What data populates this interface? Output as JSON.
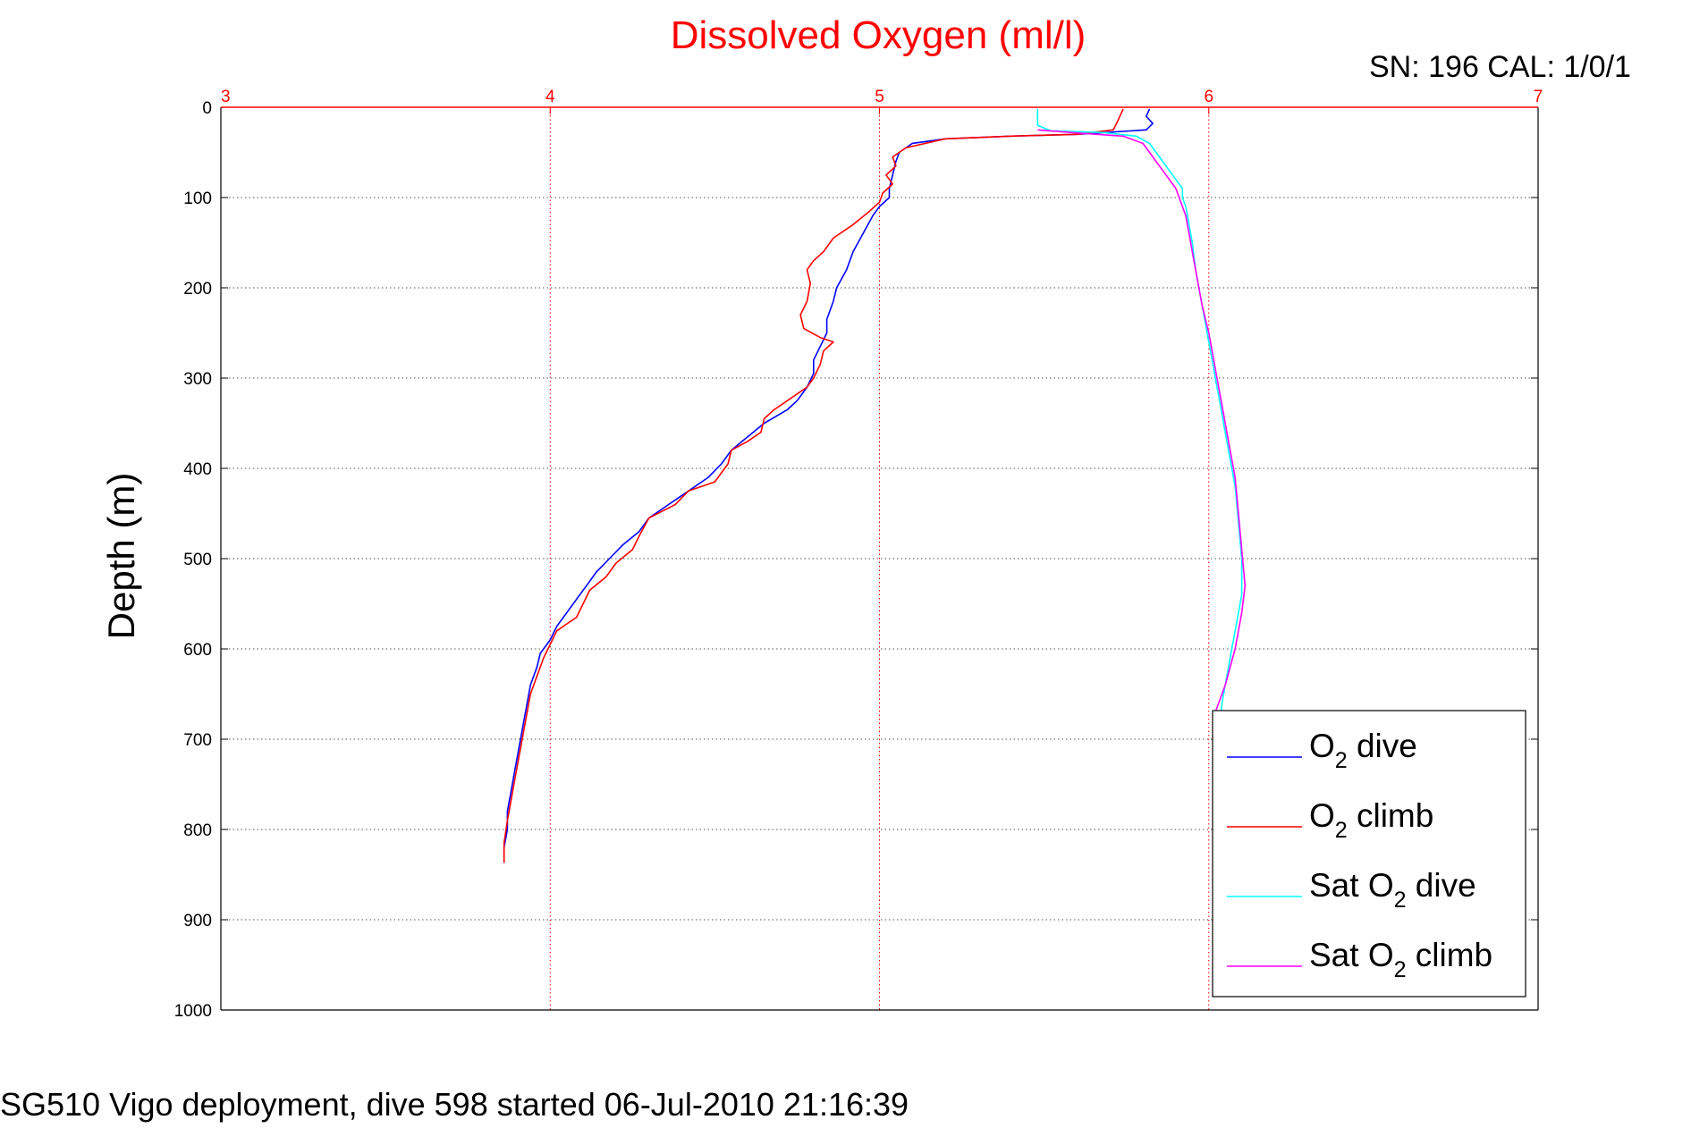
{
  "chart_data": {
    "type": "line",
    "title": "Dissolved Oxygen (ml/l)",
    "ylabel": "Depth (m)",
    "xlabel": "",
    "xlim": [
      3,
      7
    ],
    "ylim": [
      0,
      1000
    ],
    "y_reversed": true,
    "x_axis_position": "top",
    "x_ticks": [
      3,
      4,
      5,
      6,
      7
    ],
    "y_ticks": [
      0,
      100,
      200,
      300,
      400,
      500,
      600,
      700,
      800,
      900,
      1000
    ],
    "grid": true,
    "legend_position": "bottom-right",
    "annotation": "SN: 196  CAL: 1/0/1",
    "caption": "SG510 Vigo deployment, dive 598 started 06-Jul-2010 21:16:39",
    "series": [
      {
        "name": "O2 dive",
        "legend": {
          "pre": "O",
          "sub": "2",
          "post": " dive"
        },
        "color": "#0000ff",
        "points": [
          [
            5.82,
            2
          ],
          [
            5.81,
            10
          ],
          [
            5.83,
            18
          ],
          [
            5.81,
            25
          ],
          [
            5.6,
            30
          ],
          [
            5.4,
            32
          ],
          [
            5.2,
            35
          ],
          [
            5.1,
            40
          ],
          [
            5.06,
            50
          ],
          [
            5.05,
            60
          ],
          [
            5.04,
            75
          ],
          [
            5.03,
            90
          ],
          [
            5.03,
            100
          ],
          [
            5.0,
            110
          ],
          [
            4.98,
            120
          ],
          [
            4.95,
            140
          ],
          [
            4.92,
            160
          ],
          [
            4.9,
            180
          ],
          [
            4.87,
            200
          ],
          [
            4.86,
            215
          ],
          [
            4.84,
            235
          ],
          [
            4.84,
            250
          ],
          [
            4.82,
            265
          ],
          [
            4.8,
            280
          ],
          [
            4.8,
            295
          ],
          [
            4.78,
            310
          ],
          [
            4.75,
            325
          ],
          [
            4.72,
            335
          ],
          [
            4.65,
            350
          ],
          [
            4.6,
            365
          ],
          [
            4.55,
            380
          ],
          [
            4.52,
            395
          ],
          [
            4.48,
            410
          ],
          [
            4.42,
            425
          ],
          [
            4.36,
            440
          ],
          [
            4.3,
            455
          ],
          [
            4.27,
            470
          ],
          [
            4.22,
            485
          ],
          [
            4.18,
            500
          ],
          [
            4.14,
            515
          ],
          [
            4.11,
            530
          ],
          [
            4.08,
            545
          ],
          [
            4.05,
            560
          ],
          [
            4.02,
            575
          ],
          [
            4.0,
            590
          ],
          [
            3.97,
            605
          ],
          [
            3.96,
            620
          ],
          [
            3.94,
            640
          ],
          [
            3.93,
            660
          ],
          [
            3.92,
            680
          ],
          [
            3.91,
            700
          ],
          [
            3.9,
            720
          ],
          [
            3.89,
            740
          ],
          [
            3.88,
            760
          ],
          [
            3.87,
            780
          ],
          [
            3.87,
            800
          ],
          [
            3.86,
            820
          ],
          [
            3.86,
            837
          ]
        ]
      },
      {
        "name": "O2 climb",
        "legend": {
          "pre": "O",
          "sub": "2",
          "post": " climb"
        },
        "color": "#ff0000",
        "points": [
          [
            5.74,
            2
          ],
          [
            5.73,
            10
          ],
          [
            5.72,
            18
          ],
          [
            5.71,
            25
          ],
          [
            5.6,
            30
          ],
          [
            5.4,
            32
          ],
          [
            5.2,
            35
          ],
          [
            5.08,
            45
          ],
          [
            5.04,
            55
          ],
          [
            5.05,
            65
          ],
          [
            5.02,
            75
          ],
          [
            5.04,
            85
          ],
          [
            5.01,
            95
          ],
          [
            5.0,
            105
          ],
          [
            4.97,
            115
          ],
          [
            4.92,
            130
          ],
          [
            4.86,
            145
          ],
          [
            4.83,
            160
          ],
          [
            4.8,
            170
          ],
          [
            4.78,
            180
          ],
          [
            4.79,
            195
          ],
          [
            4.78,
            215
          ],
          [
            4.76,
            230
          ],
          [
            4.77,
            245
          ],
          [
            4.82,
            255
          ],
          [
            4.86,
            260
          ],
          [
            4.83,
            270
          ],
          [
            4.82,
            285
          ],
          [
            4.8,
            300
          ],
          [
            4.78,
            310
          ],
          [
            4.72,
            325
          ],
          [
            4.68,
            335
          ],
          [
            4.65,
            345
          ],
          [
            4.64,
            360
          ],
          [
            4.6,
            370
          ],
          [
            4.55,
            380
          ],
          [
            4.54,
            395
          ],
          [
            4.52,
            405
          ],
          [
            4.5,
            415
          ],
          [
            4.42,
            425
          ],
          [
            4.38,
            440
          ],
          [
            4.3,
            455
          ],
          [
            4.27,
            475
          ],
          [
            4.25,
            490
          ],
          [
            4.2,
            505
          ],
          [
            4.17,
            520
          ],
          [
            4.12,
            535
          ],
          [
            4.1,
            550
          ],
          [
            4.08,
            565
          ],
          [
            4.02,
            580
          ],
          [
            4.0,
            595
          ],
          [
            3.98,
            610
          ],
          [
            3.96,
            630
          ],
          [
            3.94,
            650
          ],
          [
            3.93,
            670
          ],
          [
            3.92,
            690
          ],
          [
            3.91,
            710
          ],
          [
            3.9,
            730
          ],
          [
            3.89,
            750
          ],
          [
            3.88,
            770
          ],
          [
            3.87,
            790
          ],
          [
            3.86,
            815
          ],
          [
            3.86,
            837
          ]
        ]
      },
      {
        "name": "Sat O2 dive",
        "legend": {
          "pre": "Sat O",
          "sub": "2",
          "post": " dive"
        },
        "color": "#00ffff",
        "points": [
          [
            5.48,
            2
          ],
          [
            5.48,
            10
          ],
          [
            5.48,
            20
          ],
          [
            5.52,
            26
          ],
          [
            5.68,
            28
          ],
          [
            5.78,
            32
          ],
          [
            5.82,
            40
          ],
          [
            5.84,
            50
          ],
          [
            5.86,
            60
          ],
          [
            5.88,
            70
          ],
          [
            5.9,
            80
          ],
          [
            5.92,
            90
          ],
          [
            5.92,
            100
          ],
          [
            5.93,
            110
          ],
          [
            5.94,
            130
          ],
          [
            5.95,
            150
          ],
          [
            5.96,
            180
          ],
          [
            5.97,
            200
          ],
          [
            5.98,
            220
          ],
          [
            5.99,
            240
          ],
          [
            6.0,
            260
          ],
          [
            6.02,
            300
          ],
          [
            6.04,
            340
          ],
          [
            6.06,
            380
          ],
          [
            6.08,
            420
          ],
          [
            6.09,
            460
          ],
          [
            6.1,
            500
          ],
          [
            6.1,
            540
          ],
          [
            6.08,
            580
          ],
          [
            6.06,
            620
          ],
          [
            6.04,
            660
          ],
          [
            6.03,
            700
          ],
          [
            6.02,
            720
          ]
        ]
      },
      {
        "name": "Sat O2 climb",
        "legend": {
          "pre": "Sat O",
          "sub": "2",
          "post": " climb"
        },
        "color": "#ff00ff",
        "points": [
          [
            5.48,
            25
          ],
          [
            5.62,
            29
          ],
          [
            5.74,
            32
          ],
          [
            5.8,
            40
          ],
          [
            5.82,
            50
          ],
          [
            5.84,
            60
          ],
          [
            5.86,
            70
          ],
          [
            5.88,
            80
          ],
          [
            5.9,
            90
          ],
          [
            5.91,
            100
          ],
          [
            5.93,
            120
          ],
          [
            5.94,
            140
          ],
          [
            5.95,
            160
          ],
          [
            5.96,
            180
          ],
          [
            5.97,
            200
          ],
          [
            5.98,
            220
          ],
          [
            6.0,
            250
          ],
          [
            6.02,
            290
          ],
          [
            6.04,
            330
          ],
          [
            6.06,
            370
          ],
          [
            6.08,
            410
          ],
          [
            6.09,
            450
          ],
          [
            6.1,
            490
          ],
          [
            6.11,
            530
          ],
          [
            6.1,
            560
          ],
          [
            6.08,
            600
          ],
          [
            6.05,
            640
          ],
          [
            6.02,
            670
          ],
          [
            6.02,
            700
          ],
          [
            6.02,
            720
          ]
        ]
      }
    ]
  }
}
